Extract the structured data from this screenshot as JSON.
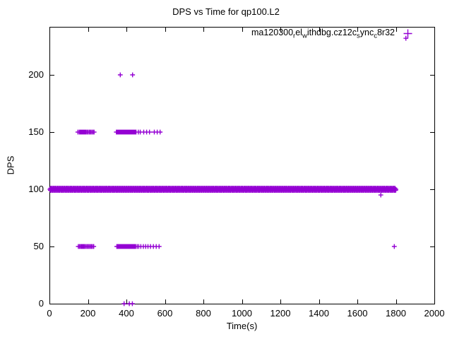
{
  "chart_data": {
    "type": "scatter",
    "title": "DPS vs Time for qp100.L2",
    "xlabel": "Time(s)",
    "ylabel": "DPS",
    "xlim": [
      0,
      2000
    ],
    "ylim": [
      0,
      242
    ],
    "xticks": [
      0,
      200,
      400,
      600,
      800,
      1000,
      1200,
      1400,
      1600,
      1800,
      2000
    ],
    "yticks": [
      0,
      50,
      100,
      150,
      200
    ],
    "grid": false,
    "marker": {
      "shape": "plus",
      "color": "#9400D3"
    },
    "legend": {
      "position": "top-right",
      "plain_label": "ma120300_rel_withdbg.cz12c_sync_c8r32",
      "segments": [
        {
          "t": "ma120300"
        },
        {
          "t": "r",
          "sub": true
        },
        {
          "t": "el"
        },
        {
          "t": "w",
          "sub": true
        },
        {
          "t": "ithdbg.cz12c"
        },
        {
          "t": "s",
          "sub": true
        },
        {
          "t": "ync"
        },
        {
          "t": "c",
          "sub": true
        },
        {
          "t": "8r32"
        }
      ]
    },
    "series": [
      {
        "name": "ma120300_rel_withdbg.cz12c_sync_c8r32",
        "bands": [
          {
            "y": 100,
            "x_from": 3,
            "x_to": 1802,
            "step": 3
          },
          {
            "y": 99,
            "x_from": 5,
            "x_to": 1800,
            "step": 6
          },
          {
            "y": 101,
            "x_from": 7,
            "x_to": 1800,
            "step": 6
          }
        ],
        "clusters": [
          {
            "y": 150,
            "x": [
              148,
              155,
              160,
              164,
              168,
              172,
              176,
              180,
              185,
              190,
              196,
              202,
              208,
              214,
              220,
              226,
              232
            ]
          },
          {
            "y": 150,
            "x": [
              348,
              352,
              356,
              360,
              363,
              366,
              369,
              372,
              375,
              378,
              381,
              384,
              387,
              390,
              393,
              396,
              399,
              402,
              405,
              408,
              411,
              414,
              417,
              420,
              424,
              428,
              432,
              436,
              440,
              445,
              450,
              462,
              472,
              490,
              505,
              520,
              545,
              560,
              575
            ]
          },
          {
            "y": 50,
            "x": [
              150,
              156,
              162,
              167,
              172,
              177,
              182,
              188,
              194,
              200,
              206,
              212,
              218,
              224,
              230
            ]
          },
          {
            "y": 50,
            "x": [
              350,
              354,
              358,
              362,
              365,
              368,
              371,
              374,
              377,
              380,
              383,
              386,
              389,
              392,
              395,
              398,
              401,
              404,
              407,
              410,
              413,
              416,
              419,
              422,
              426,
              430,
              434,
              438,
              443,
              448,
              456,
              464,
              475,
              488,
              500,
              512,
              525,
              540,
              555,
              570
            ]
          }
        ],
        "points": [
          [
            368,
            200
          ],
          [
            432,
            200
          ],
          [
            1722,
            95
          ],
          [
            1852,
            232
          ],
          [
            1792,
            50
          ],
          [
            388,
            0
          ],
          [
            415,
            0
          ],
          [
            431,
            0
          ]
        ]
      }
    ]
  }
}
